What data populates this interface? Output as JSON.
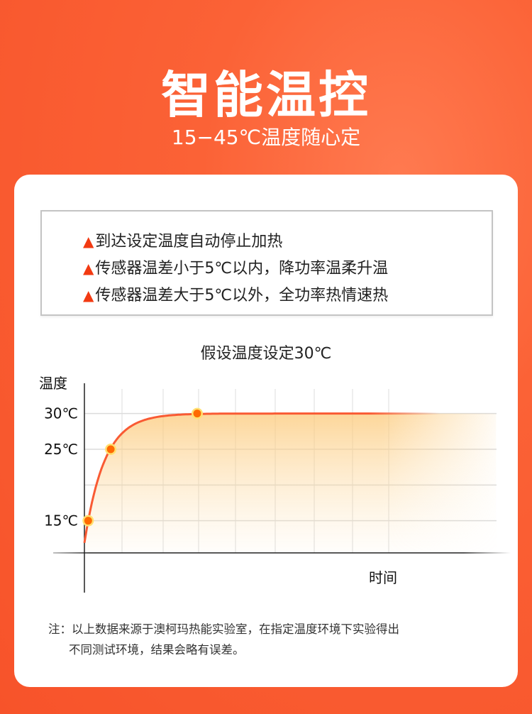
{
  "header": {
    "title": "智能温控",
    "subtitle": "15−45℃温度随心定"
  },
  "notes": [
    "到达设定温度自动停止加热",
    "传感器温差小于5℃以内，降功率温柔升温",
    "传感器温差大于5℃以外，全功率热情速热"
  ],
  "note_marker": "▲",
  "colors": {
    "background": "#f7532a",
    "line": "#f95a33",
    "point": "#ff6a00",
    "point_ring": "#ffe070",
    "fill": "#fcd79a",
    "marker": "#f23a12"
  },
  "chart_data": {
    "type": "line",
    "title": "假设温度设定30℃",
    "xlabel": "时间",
    "ylabel": "温度",
    "y_ticks": [
      "15℃",
      "25℃",
      "30℃"
    ],
    "y_tick_values": [
      15,
      25,
      30
    ],
    "grid": true,
    "series": [
      {
        "points": [
          {
            "x": 0.1,
            "y": 15
          },
          {
            "x": 0.7,
            "y": 25
          },
          {
            "x": 3.0,
            "y": 30
          }
        ],
        "plateau": 30
      }
    ]
  },
  "footnote": {
    "line1": "注：以上数据来源于澳柯玛热能实验室，在指定温度环境下实验得出",
    "line2": "不同测试环境，结果会略有误差。"
  }
}
